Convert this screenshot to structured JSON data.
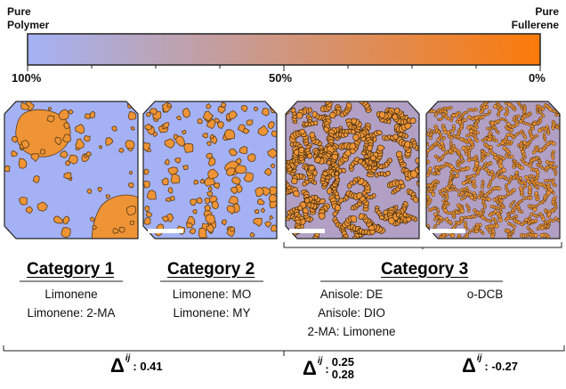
{
  "colorbar": {
    "left_label_line1": "Pure",
    "left_label_line2": "Polymer",
    "right_label_line1": "Pure",
    "right_label_line2": "Fullerene",
    "ticks": [
      "100%",
      "50%",
      "0%"
    ],
    "color_start": "#a4b2f5",
    "color_end": "#fb7a0a"
  },
  "colors": {
    "polymer": "#a4b2f5",
    "fullerene_domain": "#ee9436",
    "mixed_background": "#b2a0c4",
    "scale_bar": "#ffffff"
  },
  "panels": [
    {
      "name": "category-1-morphology",
      "pattern": "large-domains"
    },
    {
      "name": "category-2-morphology",
      "pattern": "small-droplets"
    },
    {
      "name": "category-3-morphology-a",
      "pattern": "bicontinuous-coarse"
    },
    {
      "name": "category-3-morphology-b",
      "pattern": "bicontinuous-fine"
    }
  ],
  "categories": [
    {
      "title": "Category 1",
      "solvents": [
        "Limonene",
        "Limonene: 2-MA"
      ]
    },
    {
      "title": "Category 2",
      "solvents": [
        "Limonene: MO",
        "Limonene: MY"
      ]
    },
    {
      "title": "Category 3",
      "solvents_left": [
        "Anisole: DE",
        "Anisole: DIO",
        "2-MA: Limonene"
      ],
      "solvents_right": [
        "o-DCB"
      ]
    }
  ],
  "deltas": {
    "symbol": "Δ",
    "superscript": "ij",
    "separator": ":",
    "group1": "0.41",
    "group3_left_top": "0.25",
    "group3_left_bottom": "0.28",
    "group3_right": "-0.27"
  }
}
